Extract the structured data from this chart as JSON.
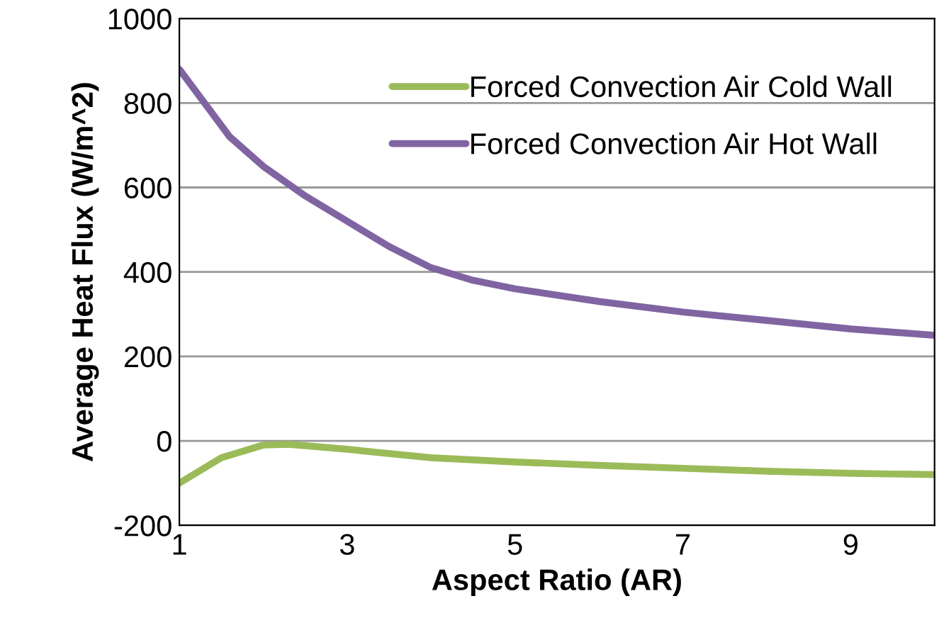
{
  "chart_data": {
    "type": "line",
    "xlabel": "Aspect Ratio (AR)",
    "ylabel": "Average Heat Flux (W/m^2)",
    "xlim": [
      1,
      10
    ],
    "xticks": [
      1,
      3,
      5,
      7,
      9
    ],
    "ylim": [
      -200,
      1000
    ],
    "yticks": [
      -200,
      0,
      200,
      400,
      600,
      800,
      1000
    ],
    "grid": "y",
    "legend": "top right",
    "marker": "none",
    "line_style": "solid",
    "series": [
      {
        "name": "Forced Convection Air Cold Wall",
        "color": "#9bbb59",
        "x": [
          1,
          1.5,
          2,
          2.3,
          3,
          4,
          5,
          6,
          7,
          8,
          9,
          10
        ],
        "values": [
          -100,
          -40,
          -10,
          -8,
          -20,
          -40,
          -50,
          -58,
          -65,
          -72,
          -77,
          -80
        ]
      },
      {
        "name": "Forced Convection Air Hot Wall",
        "color": "#8064a2",
        "x": [
          1,
          1.3,
          1.6,
          2,
          2.5,
          3,
          3.5,
          4,
          4.5,
          5,
          6,
          7,
          8,
          9,
          10
        ],
        "values": [
          880,
          800,
          720,
          650,
          580,
          520,
          460,
          410,
          380,
          360,
          330,
          305,
          285,
          265,
          250
        ]
      }
    ]
  }
}
